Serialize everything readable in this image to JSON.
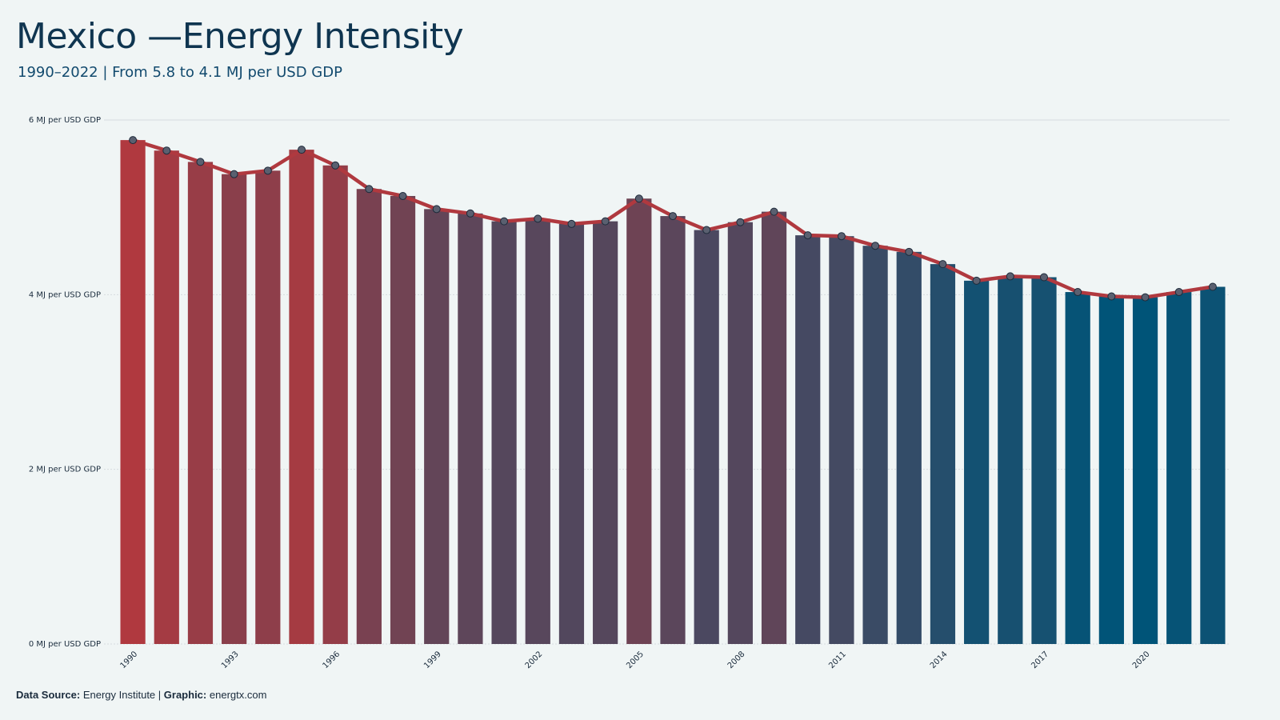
{
  "header": {
    "title": "Mexico —Energy Intensity",
    "subtitle": "1990–2022 | From 5.8 to 4.1 MJ per USD GDP"
  },
  "footer": {
    "source_label": "Data Source:",
    "source_value": "Energy Institute |",
    "graphic_label": "Graphic:",
    "graphic_value": "energtx.com"
  },
  "colors": {
    "background": "#f0f5f5",
    "line": "#b0393f",
    "high": "#b0393f",
    "low": "#005478",
    "grid": "#d6dcdf"
  },
  "chart_data": {
    "type": "bar",
    "title": "Mexico —Energy Intensity",
    "subtitle": "1990–2022 | From 5.8 to 4.1 MJ per USD GDP",
    "xlabel": "",
    "ylabel": "",
    "ylim": [
      0,
      6
    ],
    "y_ticks": [
      0,
      2,
      4,
      6
    ],
    "y_tick_labels": [
      "0 MJ per USD GDP",
      "2 MJ per USD GDP",
      "4 MJ per USD GDP",
      "6 MJ per USD GDP"
    ],
    "x_tick_labels": [
      "1990",
      "1993",
      "1996",
      "1999",
      "2002",
      "2005",
      "2008",
      "2011",
      "2014",
      "2017",
      "2020"
    ],
    "grid": true,
    "overlay": "line with markers",
    "categories": [
      "1990",
      "1991",
      "1992",
      "1993",
      "1994",
      "1995",
      "1996",
      "1997",
      "1998",
      "1999",
      "2000",
      "2001",
      "2002",
      "2003",
      "2004",
      "2005",
      "2006",
      "2007",
      "2008",
      "2009",
      "2010",
      "2011",
      "2012",
      "2013",
      "2014",
      "2015",
      "2016",
      "2017",
      "2018",
      "2019",
      "2020",
      "2021",
      "2022"
    ],
    "values": [
      5.77,
      5.65,
      5.52,
      5.38,
      5.42,
      5.66,
      5.48,
      5.21,
      5.13,
      4.98,
      4.93,
      4.84,
      4.87,
      4.81,
      4.84,
      5.1,
      4.9,
      4.74,
      4.83,
      4.95,
      4.68,
      4.67,
      4.56,
      4.49,
      4.35,
      4.16,
      4.21,
      4.2,
      4.03,
      3.98,
      3.97,
      4.03,
      4.09
    ]
  }
}
